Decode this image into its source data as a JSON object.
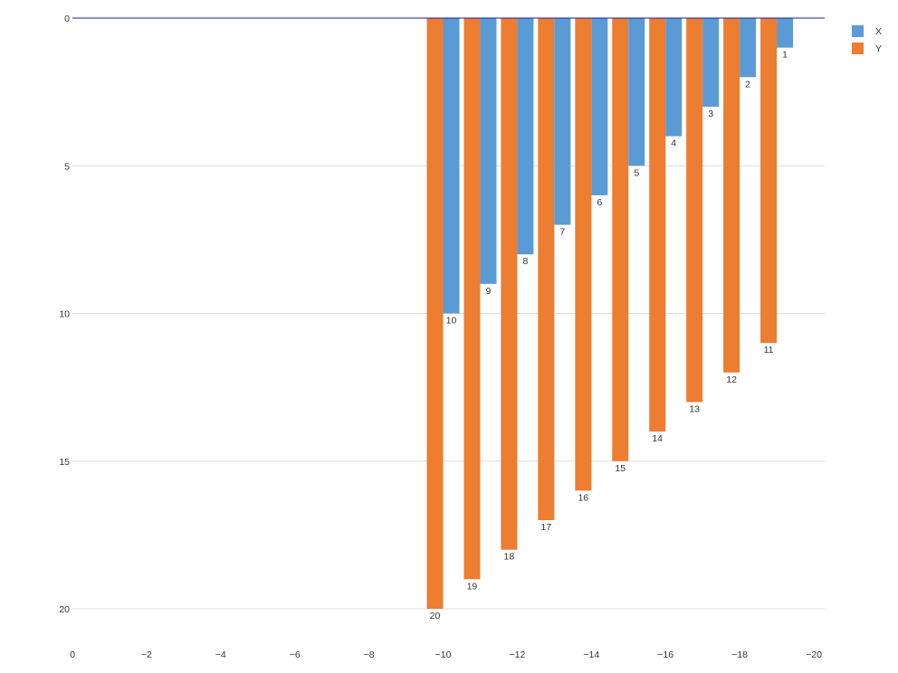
{
  "chart_data": {
    "type": "bar",
    "orientation": "vertical",
    "x_axis": {
      "reversed": true,
      "range": [
        0,
        -20
      ],
      "ticks": [
        0,
        -2,
        -4,
        -6,
        -8,
        -10,
        -12,
        -14,
        -16,
        -18,
        -20
      ],
      "tick_labels": [
        "0",
        "−2",
        "−4",
        "−6",
        "−8",
        "−10",
        "−12",
        "−14",
        "−16",
        "−18",
        "−20"
      ],
      "label": ""
    },
    "y_axis": {
      "reversed": true,
      "range": [
        0,
        21.3
      ],
      "ticks": [
        0,
        5,
        10,
        15,
        20
      ],
      "tick_labels": [
        "0",
        "5",
        "10",
        "15",
        "20"
      ],
      "label": ""
    },
    "grid": "horizontal",
    "legend_position": "top-right",
    "categories": [
      -10,
      -11,
      -12,
      -13,
      -14,
      -15,
      -16,
      -17,
      -18,
      -19
    ],
    "series": [
      {
        "name": "X",
        "color": "#5b9bd5",
        "values": [
          10,
          9,
          8,
          7,
          6,
          5,
          4,
          3,
          2,
          1
        ]
      },
      {
        "name": "Y",
        "color": "#ed7d31",
        "values": [
          20,
          19,
          18,
          17,
          16,
          15,
          14,
          13,
          12,
          11
        ]
      }
    ],
    "zero_line_color": "#1a1aa6"
  }
}
